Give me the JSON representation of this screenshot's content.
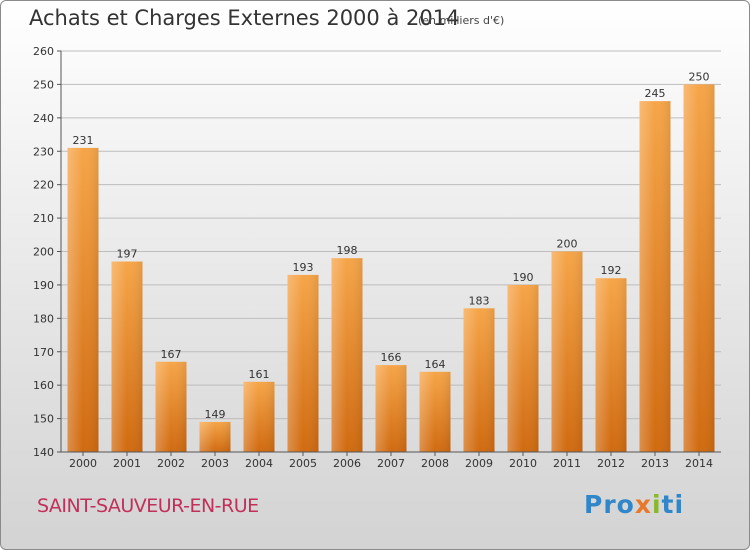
{
  "header": {
    "title": "Achats et Charges Externes 2000 à 2014",
    "subtitle": "(en milliers d'€)"
  },
  "footer": {
    "commune": "SAINT-SAUVEUR-EN-RUE",
    "logo": {
      "part1": "Pro",
      "part2": "x",
      "part3": "i",
      "part4": "ti"
    }
  },
  "colors": {
    "bar": "#f0912c",
    "bar_dark": "#d36d12",
    "grid": "#bdbdbd"
  },
  "chart_data": {
    "type": "bar",
    "title": "Achats et Charges Externes 2000 à 2014",
    "subtitle": "(en milliers d'€)",
    "categories": [
      "2000",
      "2001",
      "2002",
      "2003",
      "2004",
      "2005",
      "2006",
      "2007",
      "2008",
      "2009",
      "2010",
      "2011",
      "2012",
      "2013",
      "2014"
    ],
    "values": [
      231,
      197,
      167,
      149,
      161,
      193,
      198,
      166,
      164,
      183,
      190,
      200,
      192,
      245,
      250
    ],
    "ylim": [
      140,
      260
    ],
    "yticks": [
      140,
      150,
      160,
      170,
      180,
      190,
      200,
      210,
      220,
      230,
      240,
      250,
      260
    ],
    "grid": true
  }
}
